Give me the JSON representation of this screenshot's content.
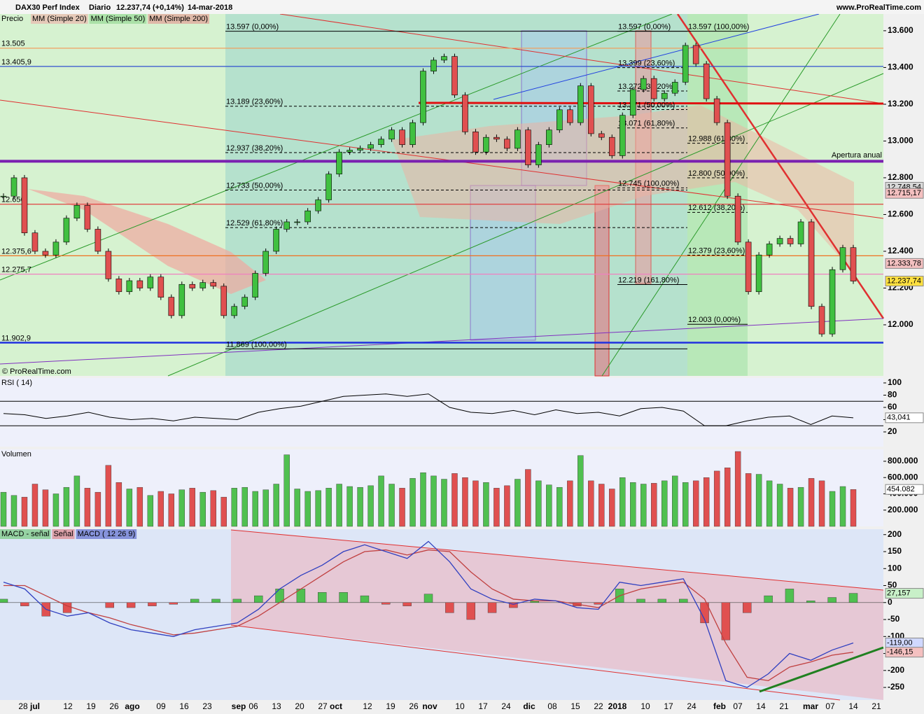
{
  "header": {
    "symbol": "DAX30 Perf Index",
    "period": "Diario",
    "last": "12.237,74 (+0,14%)",
    "date": "14-mar-2018",
    "source": "www.ProRealTime.com"
  },
  "chart_data": [
    {
      "type": "candlestick",
      "title": "Precio",
      "legend": [
        {
          "name": "MM (Simple 20)",
          "color": "#f4a0a0"
        },
        {
          "name": "MM (Simple 50)",
          "color": "#7fd07f"
        },
        {
          "name": "MM (Simple 200)",
          "color": "#e88080"
        }
      ],
      "copyright": "© ProRealTime.com",
      "values": [
        12700,
        12800,
        12500,
        12400,
        12380,
        12450,
        12580,
        12650,
        12520,
        12400,
        12250,
        12180,
        12240,
        12200,
        12260,
        12150,
        12050,
        12220,
        12200,
        12230,
        12210,
        12050,
        12100,
        12150,
        12280,
        12400,
        12520,
        12560,
        12560,
        12620,
        12680,
        12820,
        12940,
        12950,
        12960,
        12980,
        13010,
        13060,
        12980,
        13100,
        13380,
        13440,
        13460,
        13250,
        13050,
        12940,
        13020,
        13010,
        12960,
        13060,
        12870,
        12980,
        13060,
        13170,
        13100,
        13300,
        13040,
        13020,
        12920,
        13140,
        13280,
        13340,
        13230,
        13260,
        13320,
        13520,
        13420,
        13230,
        13100,
        12700,
        12450,
        12180,
        12380,
        12440,
        12470,
        12440,
        12560,
        12100,
        11950,
        12300,
        12420,
        12237.74
      ],
      "ylim": [
        11722,
        13691
      ],
      "yticks": [
        {
          "value": 12000,
          "label": "12.000"
        },
        {
          "value": 12200,
          "label": "12.200"
        },
        {
          "value": 12400,
          "label": "12.400"
        },
        {
          "value": 12600,
          "label": "12.600"
        },
        {
          "value": 12800,
          "label": "12.800"
        },
        {
          "value": 13000,
          "label": "13.000"
        },
        {
          "value": 13200,
          "label": "13.200"
        },
        {
          "value": 13400,
          "label": "13.400"
        },
        {
          "value": 13600,
          "label": "13.600"
        }
      ],
      "levels": [
        {
          "value": 13505,
          "label": "13.505",
          "color": "#f0a060"
        },
        {
          "value": 13405.9,
          "label": "13.405,9",
          "color": "#3050d0"
        },
        {
          "value": 12656,
          "label": "12.656",
          "color": "#e04040"
        },
        {
          "value": 12375.6,
          "label": "12.375,6",
          "color": "#f07020"
        },
        {
          "value": 12275.7,
          "label": "12.275,7",
          "color": "#f080c0"
        },
        {
          "value": 11902.9,
          "label": "11.902,9",
          "color": "#2030e0"
        }
      ],
      "annual_open": {
        "value": 12890,
        "label": "Apertura anual",
        "color": "#7a20b0"
      },
      "fibonacci": [
        [
          {
            "value": 13597,
            "label": "13.597 (0,00%)"
          },
          {
            "value": 13189,
            "label": "13.189 (23,60%)"
          },
          {
            "value": 12937,
            "label": "12.937 (38,20%)"
          },
          {
            "value": 12733,
            "label": "12.733 (50,00%)"
          },
          {
            "value": 12529,
            "label": "12.529 (61,80%)"
          },
          {
            "value": 11869,
            "label": "11.869 (100,00%)"
          }
        ],
        [
          {
            "value": 13597,
            "label": "13.597 (0,00%)"
          },
          {
            "value": 13399,
            "label": "13.399 (23,60%)"
          },
          {
            "value": 13272,
            "label": "13.272 (38,20%)"
          },
          {
            "value": 13171,
            "label": "13.171 (50,00%)"
          },
          {
            "value": 13071,
            "label": "13.071 (61,80%)"
          },
          {
            "value": 12745,
            "label": "12.745 (100,00%)"
          },
          {
            "value": 12219,
            "label": "12.219 (161,80%)"
          }
        ],
        [
          {
            "value": 13597,
            "label": "13.597 (100,00%)"
          },
          {
            "value": 12988,
            "label": "12.988 (61,80%)"
          },
          {
            "value": 12800,
            "label": "12.800 (50,00%)"
          },
          {
            "value": 12612,
            "label": "12.612 (38,20%)"
          },
          {
            "value": 12379,
            "label": "12.379 (23,60%)"
          },
          {
            "value": 12003,
            "label": "12.003 (0,00%)"
          }
        ]
      ],
      "current": [
        {
          "value": 12748.54,
          "label": "12.748,54",
          "color": "#d8d8d8"
        },
        {
          "value": 12715.17,
          "label": "12.715,17",
          "color": "#f4c0c0"
        },
        {
          "value": 12333.78,
          "label": "12.333,78",
          "color": "#f4c0c0"
        },
        {
          "value": 12237.74,
          "label": "12.237,74",
          "color": "#ffe040"
        }
      ]
    },
    {
      "type": "line",
      "title": "RSI ( 14)",
      "color": "#000000",
      "values": [
        50,
        48,
        42,
        46,
        52,
        44,
        40,
        42,
        38,
        44,
        42,
        40,
        52,
        58,
        62,
        70,
        78,
        80,
        82,
        78,
        82,
        60,
        52,
        50,
        55,
        48,
        56,
        50,
        52,
        46,
        58,
        60,
        54,
        30,
        30,
        38,
        44,
        46,
        32,
        46,
        43.041
      ],
      "ylim": [
        -4,
        108
      ],
      "yticks": [
        20,
        40,
        60,
        80,
        100
      ],
      "levels": [
        70,
        30
      ],
      "current": [
        {
          "value": 43.041,
          "label": "43,041",
          "color": "#ffffff"
        }
      ]
    },
    {
      "type": "bar",
      "title": "Volumen",
      "values": [
        420000,
        380000,
        360000,
        520000,
        450000,
        400000,
        480000,
        620000,
        470000,
        420000,
        750000,
        540000,
        460000,
        480000,
        380000,
        430000,
        400000,
        450000,
        470000,
        420000,
        440000,
        360000,
        470000,
        480000,
        430000,
        450000,
        520000,
        880000,
        460000,
        430000,
        440000,
        470000,
        520000,
        490000,
        480000,
        500000,
        620000,
        520000,
        470000,
        590000,
        660000,
        620000,
        580000,
        650000,
        600000,
        560000,
        540000,
        470000,
        500000,
        580000,
        700000,
        560000,
        510000,
        480000,
        560000,
        870000,
        560000,
        520000,
        460000,
        600000,
        540000,
        520000,
        530000,
        560000,
        620000,
        540000,
        560000,
        600000,
        680000,
        720000,
        920000,
        650000,
        640000,
        560000,
        520000,
        470000,
        480000,
        590000,
        560000,
        430000,
        490000,
        454082
      ],
      "ylim": [
        0,
        945700
      ],
      "yticks": [
        {
          "value": 200000,
          "label": "200.000"
        },
        {
          "value": 400000,
          "label": "400.000"
        },
        {
          "value": 600000,
          "label": "600.000"
        },
        {
          "value": 800000,
          "label": "800.000"
        }
      ],
      "current": [
        {
          "value": 454082,
          "label": "454.082",
          "color": "#ffffff"
        }
      ]
    },
    {
      "type": "macd",
      "legend": [
        {
          "name": "MACD - señal",
          "color": "#50c050"
        },
        {
          "name": "Señal",
          "color": "#e06060"
        },
        {
          "name": "MACD ( 12 26 9)",
          "color": "#3040c0"
        }
      ],
      "histogram": [
        10,
        -10,
        -40,
        -30,
        0,
        -15,
        -15,
        -10,
        -5,
        10,
        10,
        10,
        20,
        40,
        40,
        30,
        30,
        20,
        -5,
        -10,
        25,
        -30,
        -50,
        -30,
        -15,
        5,
        0,
        -10,
        -5,
        40,
        10,
        10,
        10,
        -60,
        -110,
        -30,
        20,
        40,
        5,
        15,
        27.157
      ],
      "macd": [
        60,
        40,
        -20,
        -40,
        -30,
        -60,
        -80,
        -90,
        -100,
        -80,
        -70,
        -60,
        -20,
        40,
        80,
        110,
        150,
        170,
        150,
        130,
        180,
        120,
        40,
        10,
        -5,
        10,
        5,
        -15,
        -20,
        60,
        50,
        60,
        70,
        -50,
        -230,
        -250,
        -210,
        -150,
        -170,
        -140,
        -119.0
      ],
      "signal": [
        50,
        50,
        20,
        -10,
        -30,
        -45,
        -65,
        -80,
        -95,
        -90,
        -80,
        -70,
        -40,
        0,
        40,
        80,
        120,
        150,
        155,
        140,
        155,
        150,
        90,
        40,
        10,
        5,
        5,
        -5,
        -15,
        20,
        40,
        50,
        60,
        10,
        -120,
        -220,
        -230,
        -190,
        -175,
        -155,
        -146.15
      ],
      "ylim": [
        -287,
        216
      ],
      "yticks": [
        -250,
        -200,
        -150,
        -100,
        -50,
        0,
        50,
        100,
        150,
        200
      ],
      "current": [
        {
          "value": 27.157,
          "label": "27,157",
          "color": "#c8f0c8"
        },
        {
          "value": -119.0,
          "label": "-119,00",
          "color": "#d0d8ff"
        },
        {
          "value": -146.15,
          "label": "-146,15",
          "color": "#f4c0c0"
        }
      ]
    }
  ],
  "x_labels": [
    "28",
    "jul",
    "12",
    "19",
    "26",
    "ago",
    "09",
    "16",
    "23",
    "sep",
    "06",
    "13",
    "20",
    "27",
    "oct",
    "12",
    "19",
    "26",
    "nov",
    "10",
    "17",
    "24",
    "dic",
    "08",
    "15",
    "22",
    "2018",
    "10",
    "17",
    "24",
    "feb",
    "07",
    "14",
    "21",
    "mar",
    "07",
    "14",
    "21"
  ]
}
